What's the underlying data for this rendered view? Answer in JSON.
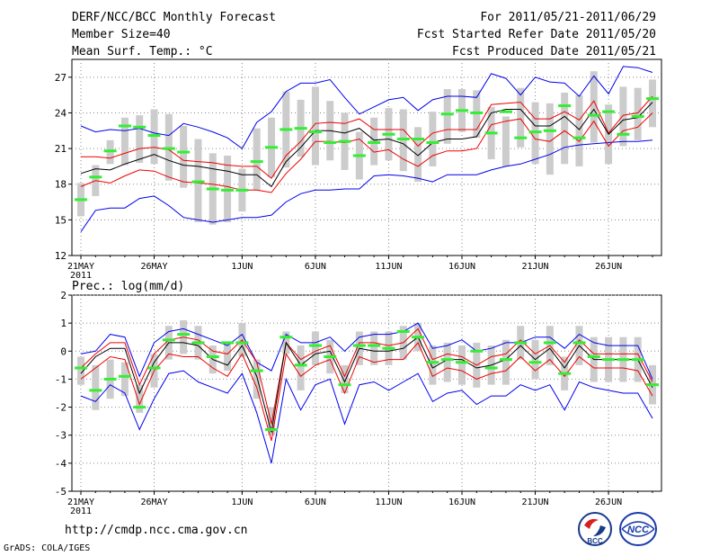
{
  "header": {
    "title": "DERF/NCC/BCC Monthly Forecast",
    "member_size": "Member Size=40",
    "variable": "Mean Surf. Temp.: °C",
    "period": "For 2011/05/21-2011/06/29",
    "start_date": "Fcst Started Refer Date 2011/05/20",
    "produced_date": "Fcst Produced Date 2011/05/21"
  },
  "footer": {
    "url": "http://cmdp.ncc.cma.gov.cn",
    "grads": "GrADS: COLA/IGES",
    "logo1_text": "BCC",
    "logo2_text": "NCC"
  },
  "colors": {
    "envelope": "#0000ee",
    "spread": "#ee0000",
    "mean": "#000000",
    "box": "#cccccc",
    "median": "#33ee33",
    "grid": "#888888"
  },
  "chart_data": [
    {
      "type": "line",
      "title": "Mean Surf. Temp.: °C",
      "x_tick_labels": [
        "21MAY",
        "26MAY",
        "1JUN",
        "6JUN",
        "11JUN",
        "16JUN",
        "21JUN",
        "26JUN"
      ],
      "x_tick_sub": "2011",
      "ylim": [
        12,
        28.5
      ],
      "y_ticks": [
        12,
        15,
        18,
        21,
        24,
        27
      ],
      "series": [
        {
          "name": "max",
          "values": [
            14.0,
            15.8,
            16.0,
            16.0,
            16.8,
            17.0,
            16.2,
            15.2,
            15.0,
            14.8,
            15.0,
            15.2,
            15.2,
            15.4,
            16.5,
            17.2,
            17.5,
            17.5,
            17.6,
            17.6,
            18.7,
            18.8,
            18.7,
            18.5,
            18.2,
            18.8,
            18.8,
            18.8,
            19.2,
            19.5,
            19.7,
            20.1,
            20.5,
            21.1,
            21.3,
            21.4,
            21.5,
            21.6,
            21.6,
            21.7
          ]
        },
        {
          "name": "spread_high",
          "values": [
            20.3,
            20.3,
            20.2,
            20.6,
            21.0,
            21.1,
            20.9,
            20.0,
            19.9,
            19.8,
            19.6,
            19.5,
            19.5,
            18.5,
            20.4,
            21.6,
            23.1,
            23.2,
            23.1,
            23.5,
            22.6,
            22.6,
            22.6,
            21.2,
            22.3,
            22.6,
            22.6,
            22.6,
            24.7,
            24.8,
            24.9,
            23.5,
            23.5,
            24.1,
            23.4,
            25.0,
            22.3,
            23.8,
            24.0,
            25.4
          ]
        },
        {
          "name": "ensemble_mean",
          "values": [
            18.9,
            19.3,
            19.2,
            19.7,
            20.1,
            20.5,
            20.0,
            19.6,
            19.5,
            19.3,
            19.1,
            18.8,
            18.8,
            17.8,
            19.9,
            21.1,
            22.5,
            22.5,
            22.3,
            22.7,
            21.7,
            21.8,
            21.4,
            20.4,
            21.5,
            21.8,
            21.8,
            22.0,
            24.0,
            24.3,
            24.3,
            22.9,
            22.9,
            23.7,
            22.6,
            24.3,
            22.2,
            23.4,
            23.6,
            24.9
          ]
        },
        {
          "name": "spread_low",
          "values": [
            17.8,
            18.3,
            18.1,
            18.7,
            19.2,
            19.1,
            18.6,
            18.2,
            18.1,
            18.0,
            17.8,
            17.5,
            17.5,
            17.3,
            18.9,
            20.1,
            21.6,
            21.6,
            21.5,
            21.8,
            20.7,
            20.9,
            20.1,
            19.5,
            20.4,
            20.8,
            20.8,
            21.0,
            23.0,
            23.3,
            23.5,
            21.8,
            21.6,
            22.5,
            21.6,
            23.3,
            21.2,
            22.5,
            22.8,
            24.0
          ]
        },
        {
          "name": "min",
          "values": [
            22.9,
            22.4,
            22.6,
            22.5,
            22.7,
            22.3,
            22.1,
            23.1,
            22.8,
            22.4,
            21.9,
            21.0,
            23.2,
            24.1,
            25.8,
            26.5,
            26.5,
            26.8,
            25.3,
            23.9,
            24.5,
            25.1,
            25.3,
            24.2,
            25.1,
            25.4,
            25.4,
            25.3,
            27.3,
            26.9,
            25.5,
            27.0,
            26.6,
            26.5,
            25.4,
            27.1,
            25.6,
            27.9,
            27.8,
            27.4
          ]
        }
      ],
      "box_mid": [
        16.7,
        18.3,
        20.7,
        21.6,
        21.8,
        22.0,
        21.1,
        20.3,
        18.3,
        17.6,
        17.6,
        17.5,
        20.1,
        21.1,
        22.6,
        22.7,
        22.9,
        22.5,
        21.6,
        20.4,
        21.6,
        22.2,
        21.7,
        20.5,
        21.8,
        23.7,
        24.2,
        23.9,
        22.3,
        21.6,
        23.6,
        22.3,
        21.8,
        22.7,
        22.5,
        24.5,
        22.2,
        23.7,
        23.9,
        24.8
      ],
      "box_half": [
        1.4,
        1.3,
        1.0,
        2.0,
        2.0,
        2.3,
        2.8,
        2.6,
        3.5,
        3.0,
        2.8,
        1.8,
        2.6,
        2.5,
        3.2,
        2.4,
        3.3,
        2.5,
        2.4,
        2.0,
        2.0,
        2.2,
        2.6,
        2.3,
        2.3,
        2.3,
        1.8,
        2.0,
        2.2,
        2.1,
        2.5,
        2.6,
        3.0,
        3.0,
        3.0,
        3.0,
        2.5,
        2.5,
        2.2,
        2.0
      ],
      "median": [
        16.7,
        18.6,
        20.8,
        22.9,
        22.8,
        22.1,
        21.0,
        20.7,
        18.2,
        17.6,
        17.5,
        17.5,
        19.9,
        21.1,
        22.6,
        22.7,
        22.4,
        21.5,
        21.6,
        20.4,
        21.5,
        22.2,
        21.8,
        21.8,
        21.5,
        23.9,
        24.2,
        24.0,
        22.3,
        24.1,
        21.9,
        22.4,
        22.5,
        24.6,
        21.9,
        23.8,
        24.1,
        22.2,
        23.7,
        25.2
      ]
    },
    {
      "type": "line",
      "title": "Prec.: log(mm/d)",
      "x_tick_labels": [
        "21MAY",
        "26MAY",
        "1JUN",
        "6JUN",
        "11JUN",
        "16JUN",
        "21JUN",
        "26JUN"
      ],
      "x_tick_sub": "2011",
      "ylim": [
        -5,
        2
      ],
      "y_ticks": [
        -5,
        -4,
        -3,
        -2,
        -1,
        0,
        1,
        2
      ],
      "series": [
        {
          "name": "max",
          "values": [
            -0.1,
            0.0,
            0.6,
            0.5,
            -0.9,
            0.3,
            0.7,
            0.8,
            0.6,
            0.4,
            0.2,
            0.6,
            -0.4,
            -0.7,
            0.6,
            0.3,
            0.3,
            0.5,
            0.0,
            0.5,
            0.6,
            0.6,
            0.7,
            1.0,
            0.1,
            0.2,
            0.4,
            0.0,
            0.1,
            0.3,
            0.3,
            0.5,
            0.5,
            0.1,
            0.6,
            0.3,
            0.2,
            0.2,
            0.2,
            -1.0
          ]
        },
        {
          "name": "spread_high",
          "values": [
            -0.6,
            -0.1,
            0.3,
            0.3,
            -1.2,
            -0.1,
            0.4,
            0.5,
            0.4,
            0.0,
            -0.1,
            0.4,
            -0.4,
            -2.6,
            0.3,
            -0.3,
            0.0,
            0.2,
            -0.9,
            0.3,
            0.3,
            0.2,
            0.3,
            0.8,
            -0.3,
            -0.1,
            -0.2,
            -0.5,
            -0.2,
            -0.1,
            0.4,
            -0.1,
            0.2,
            -0.4,
            0.4,
            -0.1,
            -0.1,
            -0.1,
            -0.1,
            -1.1
          ]
        },
        {
          "name": "ensemble_mean",
          "values": [
            -0.8,
            -0.2,
            0.1,
            0.1,
            -1.5,
            -0.4,
            0.3,
            0.3,
            0.2,
            -0.3,
            -0.5,
            0.2,
            -0.9,
            -2.9,
            0.3,
            -0.5,
            -0.1,
            0.0,
            -1.1,
            0.1,
            0.0,
            0.0,
            0.1,
            0.5,
            -0.6,
            -0.3,
            -0.3,
            -0.6,
            -0.5,
            -0.3,
            0.2,
            -0.3,
            0.1,
            -0.6,
            0.2,
            -0.3,
            -0.3,
            -0.3,
            -0.3,
            -1.3
          ]
        },
        {
          "name": "spread_low",
          "values": [
            -1.0,
            -0.6,
            -0.2,
            -0.3,
            -1.9,
            -0.7,
            -0.1,
            -0.2,
            -0.2,
            -0.6,
            -0.9,
            -0.1,
            -1.3,
            -3.2,
            -0.1,
            -0.9,
            -0.5,
            -0.3,
            -1.5,
            -0.2,
            -0.4,
            -0.3,
            -0.3,
            0.3,
            -0.9,
            -0.6,
            -0.7,
            -1.0,
            -0.8,
            -0.7,
            -0.2,
            -0.7,
            -0.3,
            -0.9,
            -0.2,
            -0.6,
            -0.6,
            -0.6,
            -0.7,
            -1.6
          ]
        },
        {
          "name": "min",
          "values": [
            -1.6,
            -1.8,
            -1.2,
            -1.5,
            -2.8,
            -1.7,
            -0.8,
            -0.7,
            -1.1,
            -1.3,
            -1.5,
            -0.8,
            -2.2,
            -4.0,
            -1.0,
            -2.1,
            -1.2,
            -1.0,
            -2.6,
            -1.2,
            -1.1,
            -1.4,
            -1.1,
            -0.8,
            -1.8,
            -1.5,
            -1.4,
            -1.9,
            -1.6,
            -1.6,
            -1.2,
            -1.4,
            -1.2,
            -2.1,
            -1.1,
            -1.3,
            -1.4,
            -1.5,
            -1.5,
            -2.4
          ]
        }
      ],
      "box_mid": [
        -0.7,
        -1.3,
        -1.0,
        -1.0,
        -1.7,
        -0.7,
        0.3,
        0.5,
        0.3,
        -0.3,
        -0.2,
        0.4,
        -1.0,
        -2.5,
        0.3,
        -0.6,
        0.1,
        -0.2,
        -1.0,
        0.1,
        0.1,
        0.1,
        0.3,
        0.5,
        -0.5,
        -0.4,
        -0.5,
        -0.5,
        -0.5,
        -0.4,
        0.3,
        -0.3,
        0.2,
        -0.8,
        0.2,
        -0.3,
        -0.3,
        -0.3,
        -0.3,
        -1.2
      ],
      "box_half": [
        0.5,
        0.8,
        0.7,
        0.6,
        0.5,
        0.6,
        0.6,
        0.6,
        0.6,
        0.5,
        0.5,
        0.6,
        0.7,
        0.5,
        0.4,
        0.8,
        0.6,
        0.6,
        0.5,
        0.6,
        0.6,
        0.6,
        0.6,
        0.5,
        0.7,
        0.7,
        0.7,
        0.8,
        0.7,
        0.8,
        0.6,
        0.7,
        0.7,
        0.6,
        0.7,
        0.8,
        0.8,
        0.8,
        0.8,
        0.7
      ],
      "median": [
        -0.6,
        -1.4,
        -1.0,
        -0.9,
        -2.0,
        -0.6,
        0.4,
        0.6,
        0.3,
        -0.2,
        0.3,
        0.3,
        -0.7,
        -2.8,
        0.5,
        -0.5,
        0.2,
        -0.2,
        -1.2,
        0.2,
        0.2,
        0.1,
        0.7,
        0.5,
        -0.4,
        -0.3,
        -0.4,
        0.0,
        -0.6,
        -0.3,
        0.3,
        -0.4,
        0.3,
        -0.8,
        0.3,
        -0.2,
        -0.3,
        -0.3,
        -0.3,
        -1.2
      ]
    }
  ]
}
